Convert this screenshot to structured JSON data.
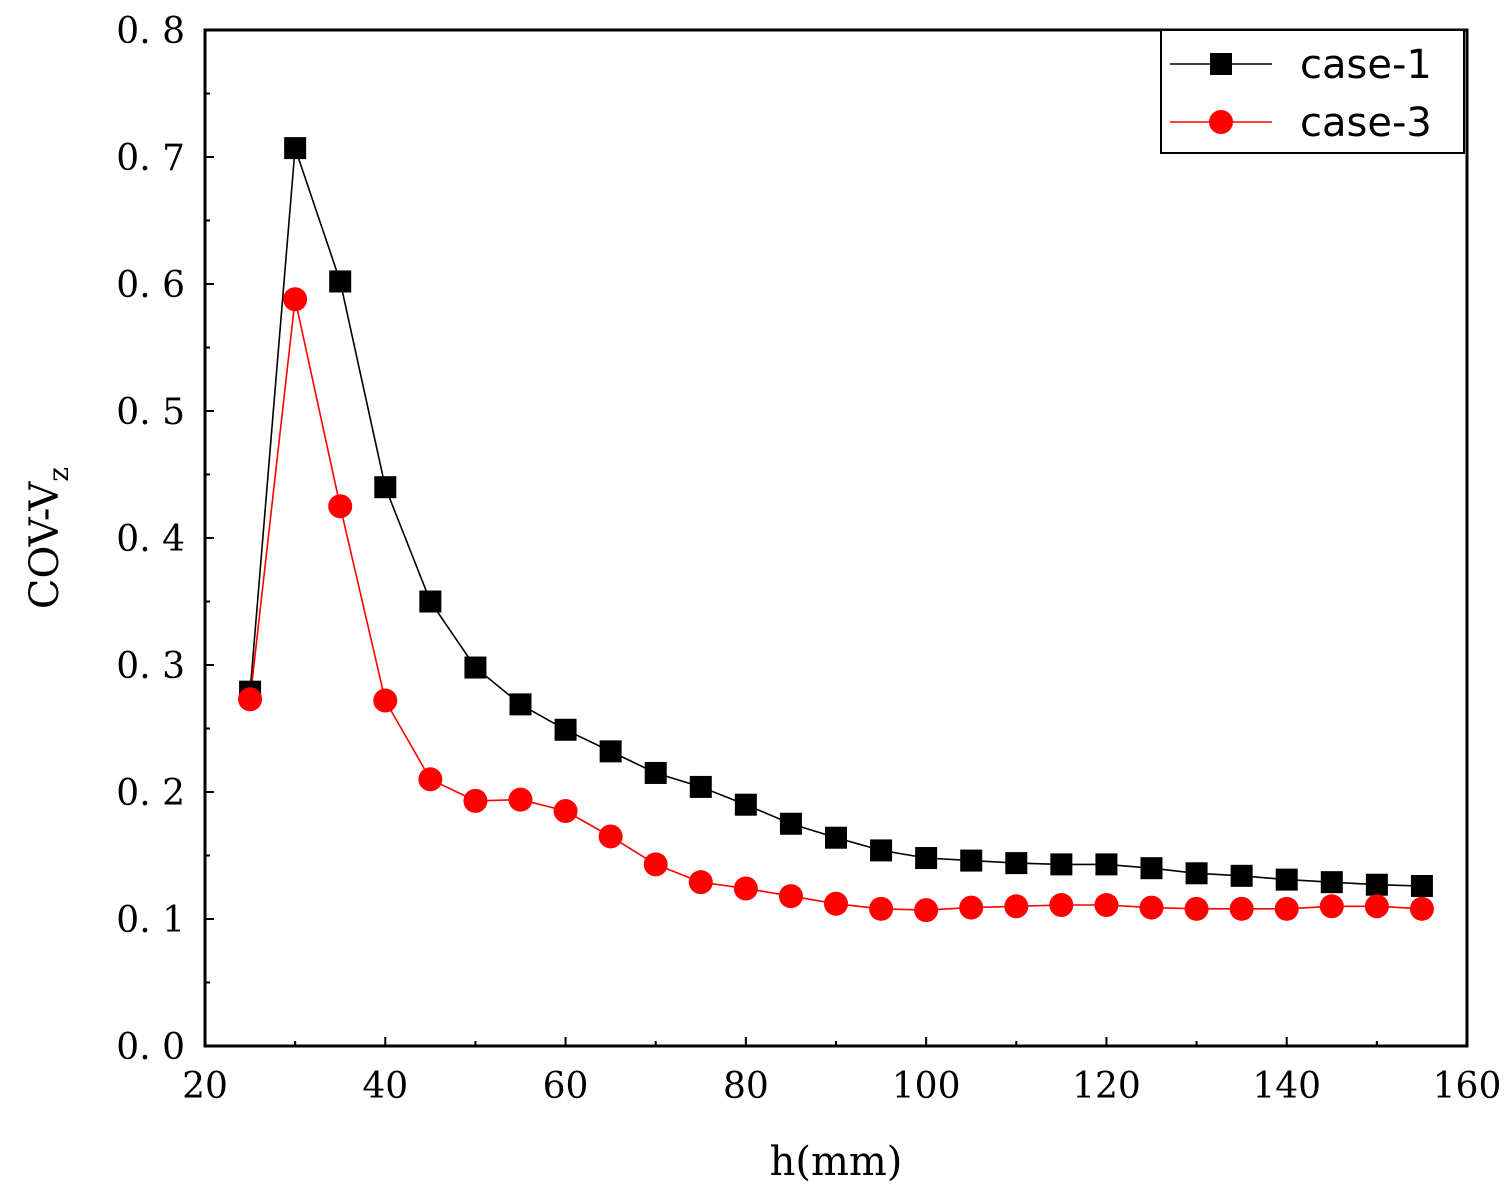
{
  "chart_data": {
    "type": "line",
    "title": "",
    "xlabel": "h(mm)",
    "ylabel_main": "COV-V",
    "ylabel_sub": "z",
    "xlim": [
      20,
      160
    ],
    "ylim": [
      0.0,
      0.8
    ],
    "xticks": [
      20,
      40,
      60,
      80,
      100,
      120,
      140,
      160
    ],
    "yticks": [
      0.0,
      0.1,
      0.2,
      0.3,
      0.4,
      0.5,
      0.6,
      0.7,
      0.8
    ],
    "ytick_labels": [
      "0. 0",
      "0. 1",
      "0. 2",
      "0. 3",
      "0. 4",
      "0. 5",
      "0. 6",
      "0. 7",
      "0. 8"
    ],
    "grid": false,
    "legend_position": "top-right",
    "x": [
      25,
      30,
      35,
      40,
      45,
      50,
      55,
      60,
      65,
      70,
      75,
      80,
      85,
      90,
      95,
      100,
      105,
      110,
      115,
      120,
      125,
      130,
      135,
      140,
      145,
      150,
      155
    ],
    "series": [
      {
        "name": "case-1",
        "color": "#000000",
        "marker": "square",
        "values": [
          0.279,
          0.707,
          0.602,
          0.44,
          0.35,
          0.298,
          0.269,
          0.249,
          0.232,
          0.215,
          0.204,
          0.19,
          0.175,
          0.164,
          0.154,
          0.148,
          0.146,
          0.144,
          0.143,
          0.143,
          0.14,
          0.136,
          0.134,
          0.131,
          0.129,
          0.127,
          0.126
        ]
      },
      {
        "name": "case-3",
        "color": "#ff0000",
        "marker": "circle",
        "values": [
          0.273,
          0.588,
          0.425,
          0.272,
          0.21,
          0.193,
          0.194,
          0.185,
          0.165,
          0.143,
          0.129,
          0.124,
          0.118,
          0.112,
          0.108,
          0.107,
          0.109,
          0.11,
          0.111,
          0.111,
          0.109,
          0.108,
          0.108,
          0.108,
          0.11,
          0.11,
          0.108
        ]
      }
    ]
  }
}
